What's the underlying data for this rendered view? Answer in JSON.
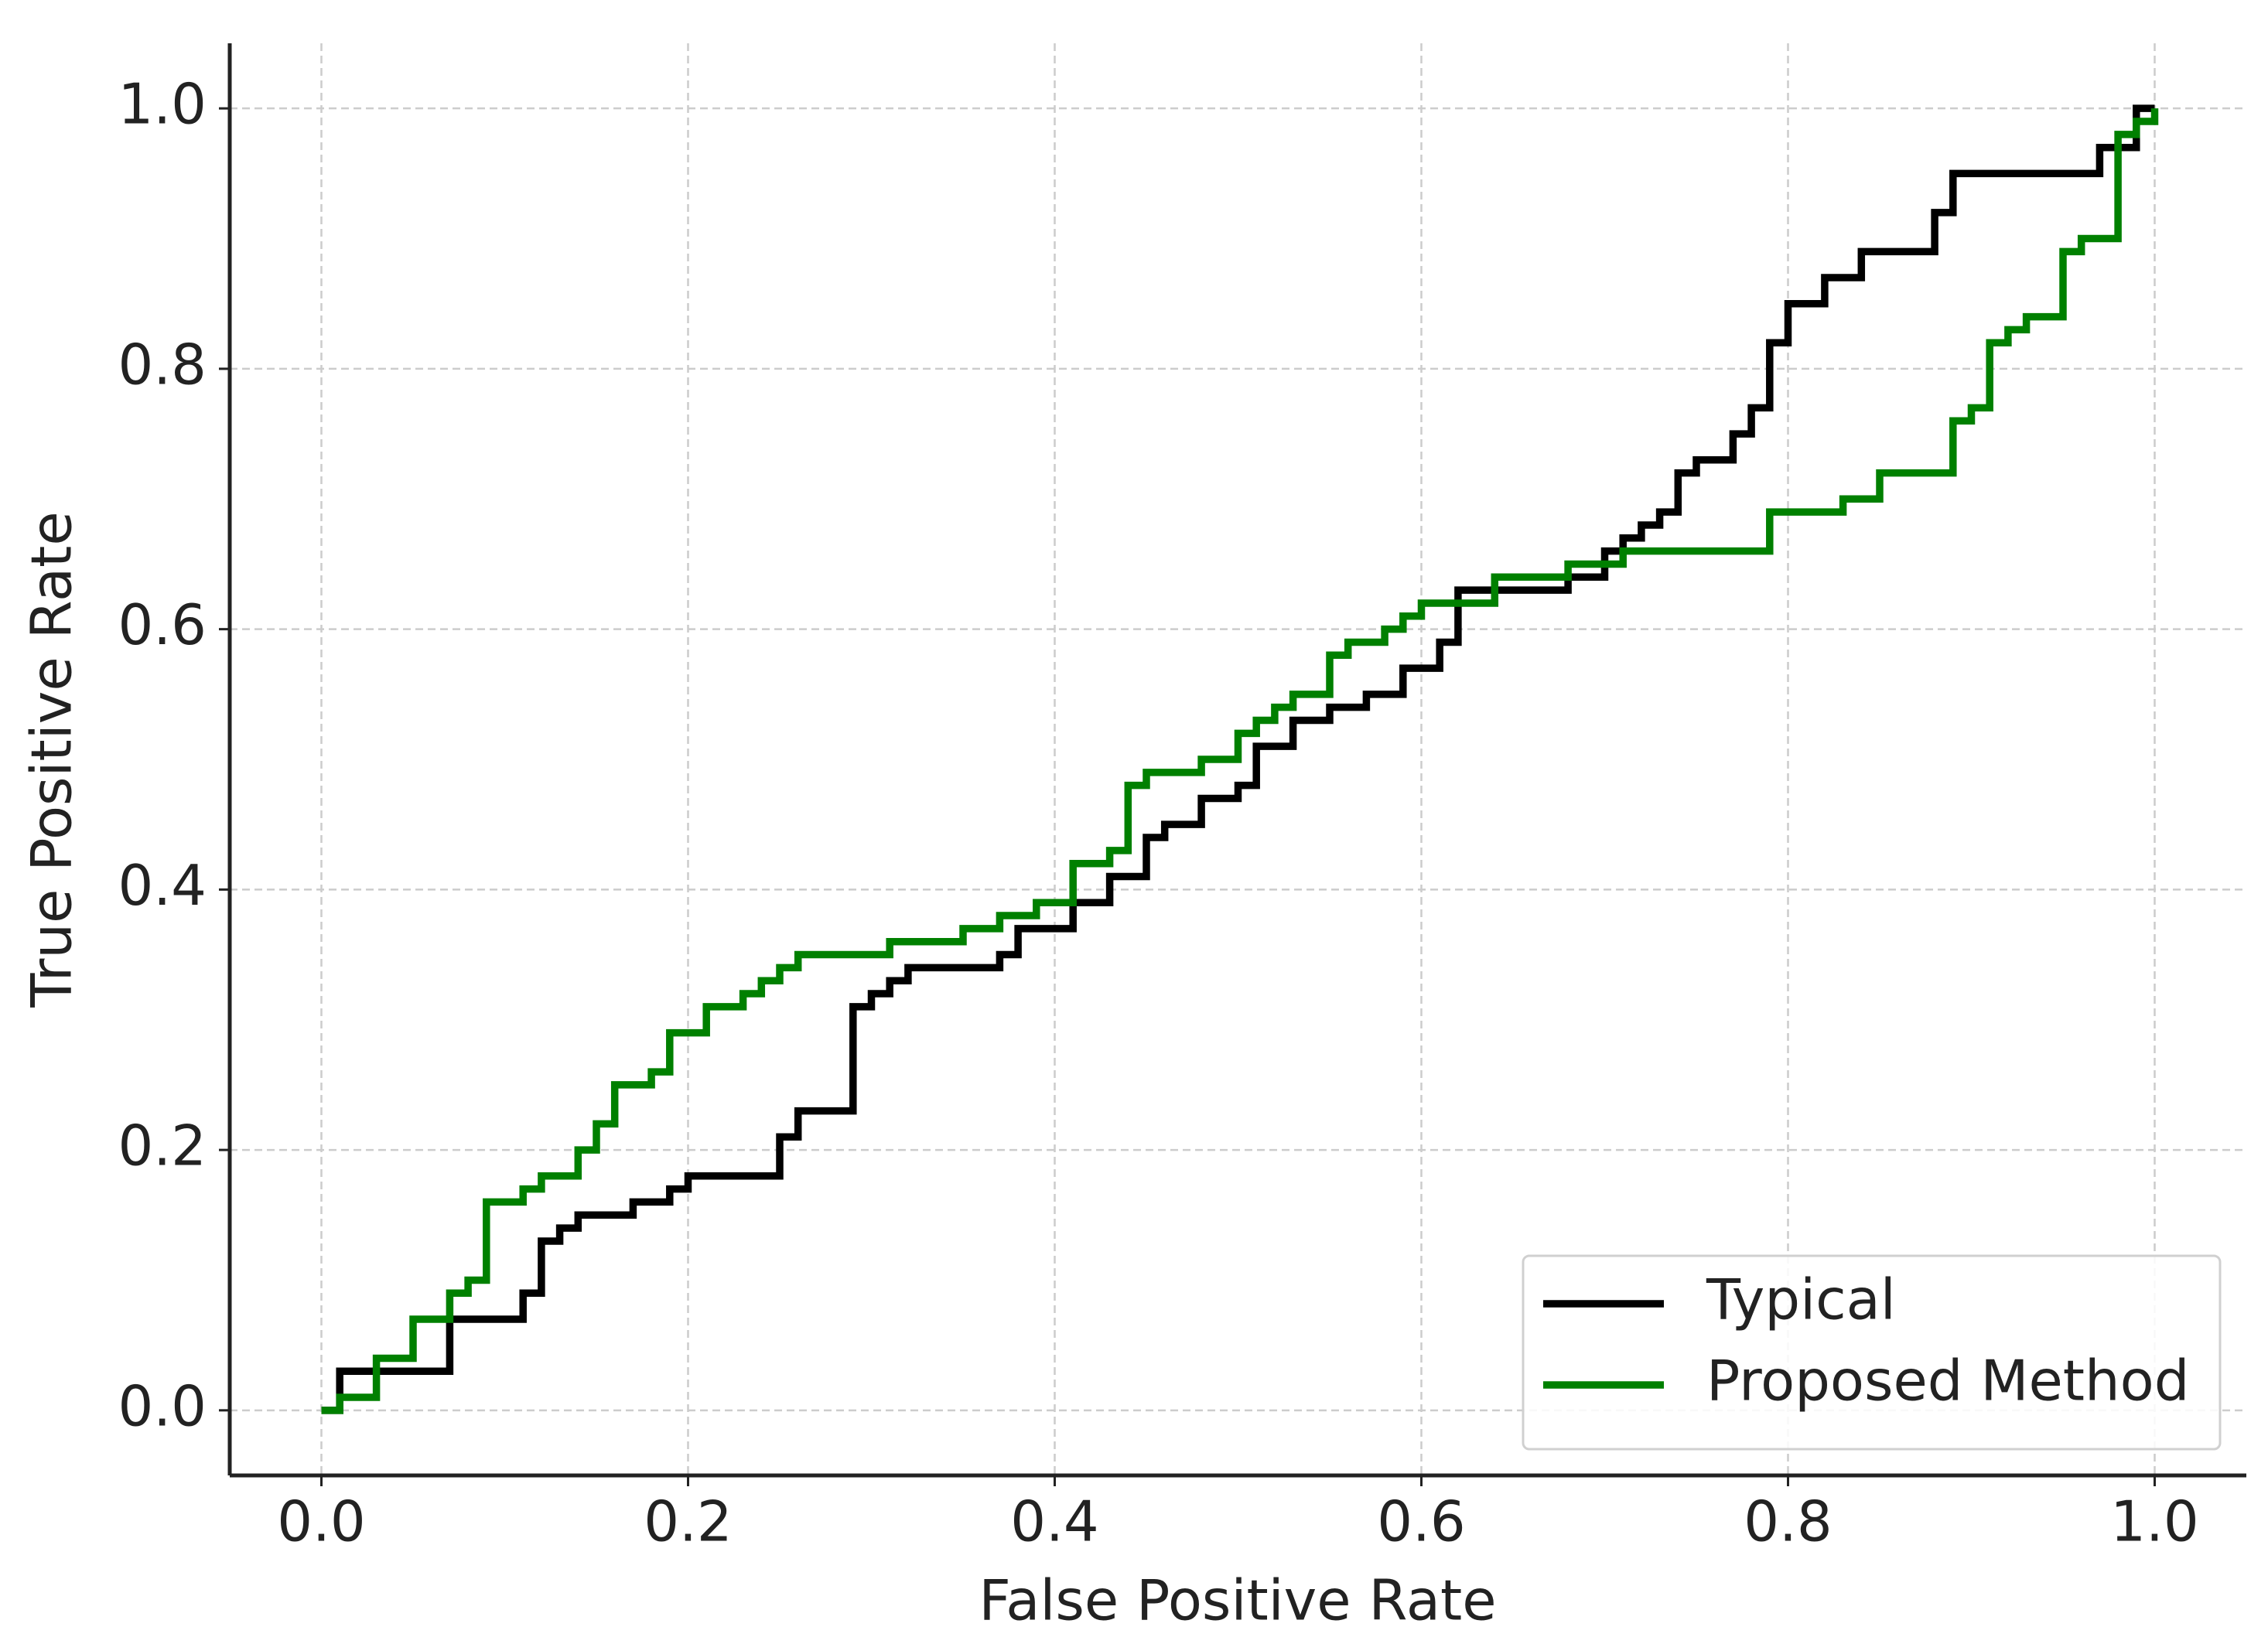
{
  "chart_data": {
    "type": "line",
    "drawstyle": "steps-post",
    "xlabel": "False Positive Rate",
    "ylabel": "True Positive Rate",
    "xlim": [
      -0.05,
      1.05
    ],
    "ylim": [
      -0.05,
      1.05
    ],
    "xticks": [
      {
        "value": 0,
        "label": "0.0"
      },
      0.2,
      0.4,
      0.6,
      0.8,
      {
        "value": 1,
        "label": "1.0"
      }
    ],
    "yticks": [
      {
        "value": 0,
        "label": "0.0"
      },
      0.2,
      0.4,
      0.6,
      0.8,
      {
        "value": 1,
        "label": "1.0"
      }
    ],
    "grid": true,
    "legend": "lower right",
    "series": [
      {
        "name": "Typical",
        "color": "#000000",
        "x": [
          0,
          0.01,
          0.07,
          0.11,
          0.12,
          0.13,
          0.14,
          0.17,
          0.19,
          0.2,
          0.25,
          0.26,
          0.29,
          0.3,
          0.31,
          0.32,
          0.37,
          0.38,
          0.41,
          0.43,
          0.45,
          0.46,
          0.48,
          0.5,
          0.51,
          0.53,
          0.55,
          0.57,
          0.59,
          0.61,
          0.62,
          0.68,
          0.7,
          0.71,
          0.72,
          0.73,
          0.74,
          0.75,
          0.77,
          0.78,
          0.79,
          0.8,
          0.82,
          0.84,
          0.88,
          0.89,
          0.97,
          0.99,
          1.0
        ],
        "values": [
          0,
          0.03,
          0.07,
          0.09,
          0.13,
          0.14,
          0.15,
          0.16,
          0.17,
          0.18,
          0.21,
          0.23,
          0.31,
          0.32,
          0.33,
          0.34,
          0.35,
          0.37,
          0.39,
          0.41,
          0.44,
          0.45,
          0.47,
          0.48,
          0.51,
          0.53,
          0.54,
          0.55,
          0.57,
          0.59,
          0.63,
          0.64,
          0.66,
          0.67,
          0.68,
          0.69,
          0.72,
          0.73,
          0.75,
          0.77,
          0.82,
          0.85,
          0.87,
          0.89,
          0.92,
          0.95,
          0.97,
          1.0,
          1.0
        ]
      },
      {
        "name": "Proposed Method",
        "color": "#008000",
        "x": [
          0,
          0.01,
          0.03,
          0.05,
          0.07,
          0.08,
          0.09,
          0.11,
          0.12,
          0.14,
          0.15,
          0.16,
          0.18,
          0.19,
          0.21,
          0.23,
          0.24,
          0.25,
          0.26,
          0.31,
          0.35,
          0.37,
          0.39,
          0.41,
          0.43,
          0.44,
          0.45,
          0.48,
          0.5,
          0.51,
          0.52,
          0.53,
          0.55,
          0.56,
          0.58,
          0.59,
          0.6,
          0.64,
          0.68,
          0.71,
          0.79,
          0.83,
          0.85,
          0.89,
          0.9,
          0.91,
          0.92,
          0.93,
          0.95,
          0.96,
          0.98,
          0.99,
          1.0
        ],
        "values": [
          0,
          0.01,
          0.04,
          0.07,
          0.09,
          0.1,
          0.16,
          0.17,
          0.18,
          0.2,
          0.22,
          0.25,
          0.26,
          0.29,
          0.31,
          0.32,
          0.33,
          0.34,
          0.35,
          0.36,
          0.37,
          0.38,
          0.39,
          0.42,
          0.43,
          0.48,
          0.49,
          0.5,
          0.52,
          0.53,
          0.54,
          0.55,
          0.58,
          0.59,
          0.6,
          0.61,
          0.62,
          0.64,
          0.65,
          0.66,
          0.69,
          0.7,
          0.72,
          0.76,
          0.77,
          0.82,
          0.83,
          0.84,
          0.89,
          0.9,
          0.98,
          0.99,
          1.0
        ]
      }
    ]
  }
}
